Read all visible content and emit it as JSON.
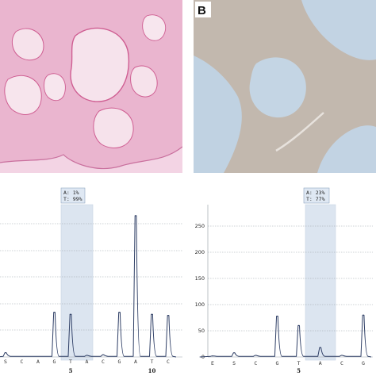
{
  "panel_labels": {
    "b": "B"
  },
  "colors": {
    "he_background": "#f1c9dd",
    "he_stroma": "#e8a9c8",
    "ihc_background": "#c4b9b0",
    "ihc_lumen": "#bcd0e3",
    "trace": "#2f3f66",
    "highlight": "#dde6f1"
  },
  "chart_data": [
    {
      "type": "line",
      "title": "",
      "xlabel": "",
      "ylabel": "",
      "ylim": [
        0,
        280
      ],
      "grid": true,
      "legend": "none",
      "bases": [
        "S",
        "C",
        "A",
        "G",
        "T",
        "A",
        "C",
        "G",
        "A",
        "T",
        "C"
      ],
      "positions": [
        {
          "after_base_index": 5,
          "label": "5"
        },
        {
          "after_base_index": 10,
          "label": "10"
        }
      ],
      "highlighted_base_index": 4,
      "callout": {
        "line1": "A: 1%",
        "line2": "T: 99%"
      },
      "peaks": [
        {
          "x": 0,
          "y": 8
        },
        {
          "x": 3,
          "y": 84
        },
        {
          "x": 4,
          "y": 80
        },
        {
          "x": 5,
          "y": 3
        },
        {
          "x": 6,
          "y": 4
        },
        {
          "x": 7,
          "y": 84
        },
        {
          "x": 8,
          "y": 265
        },
        {
          "x": 9,
          "y": 80
        },
        {
          "x": 10,
          "y": 78
        }
      ]
    },
    {
      "type": "line",
      "title": "",
      "xlabel": "",
      "ylabel": "",
      "ylim": [
        0,
        280
      ],
      "yticks": [
        0,
        50,
        100,
        150,
        200,
        250
      ],
      "grid": true,
      "legend": "none",
      "bases": [
        "E",
        "S",
        "C",
        "G",
        "T",
        "A",
        "C",
        "G"
      ],
      "positions": [
        {
          "after_base_index": 5,
          "label": "5"
        }
      ],
      "highlighted_base_index": 4,
      "callout": {
        "line1": "A: 23%",
        "line2": "T: 77%"
      },
      "peaks": [
        {
          "x": 0,
          "y": 2
        },
        {
          "x": 1,
          "y": 8
        },
        {
          "x": 2,
          "y": 3
        },
        {
          "x": 3,
          "y": 78
        },
        {
          "x": 4,
          "y": 60
        },
        {
          "x": 5,
          "y": 18
        },
        {
          "x": 6,
          "y": 3
        },
        {
          "x": 7,
          "y": 80
        }
      ]
    }
  ]
}
